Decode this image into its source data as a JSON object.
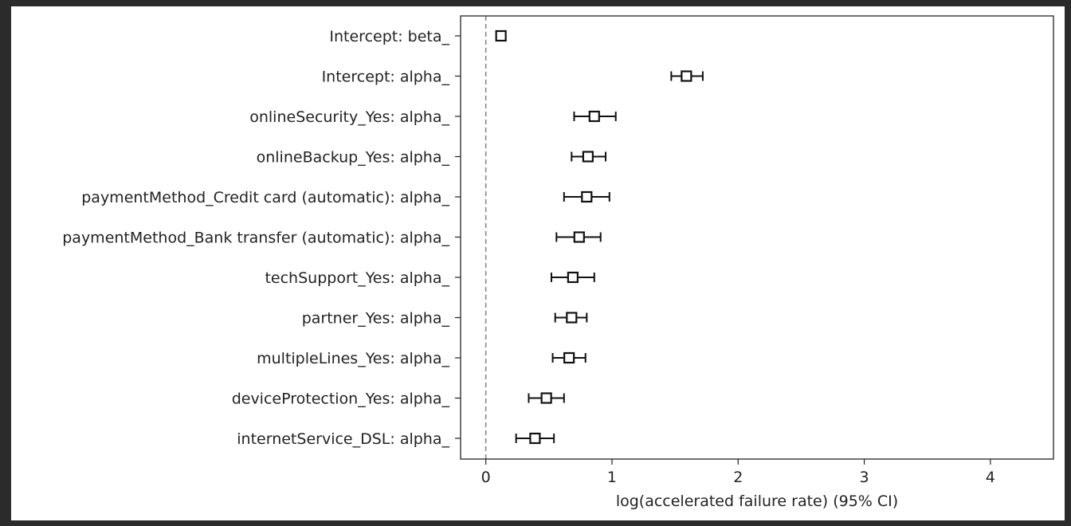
{
  "chart_data": {
    "type": "forest",
    "xlabel": "log(accelerated failure rate) (95% CI)",
    "xlim": [
      -0.2,
      4.5
    ],
    "xticks": [
      0,
      1,
      2,
      3,
      4
    ],
    "reference_line_x": 0,
    "grid": false,
    "rows": [
      {
        "label": "Intercept: beta_",
        "coef": 0.12,
        "lower": 0.12,
        "upper": 0.12
      },
      {
        "label": "Intercept: alpha_",
        "coef": 1.59,
        "lower": 1.47,
        "upper": 1.72
      },
      {
        "label": "onlineSecurity_Yes: alpha_",
        "coef": 0.86,
        "lower": 0.7,
        "upper": 1.03
      },
      {
        "label": "onlineBackup_Yes: alpha_",
        "coef": 0.81,
        "lower": 0.68,
        "upper": 0.95
      },
      {
        "label": "paymentMethod_Credit card (automatic): alpha_",
        "coef": 0.8,
        "lower": 0.62,
        "upper": 0.98
      },
      {
        "label": "paymentMethod_Bank transfer (automatic): alpha_",
        "coef": 0.74,
        "lower": 0.56,
        "upper": 0.91
      },
      {
        "label": "techSupport_Yes: alpha_",
        "coef": 0.69,
        "lower": 0.52,
        "upper": 0.86
      },
      {
        "label": "partner_Yes: alpha_",
        "coef": 0.68,
        "lower": 0.55,
        "upper": 0.8
      },
      {
        "label": "multipleLines_Yes: alpha_",
        "coef": 0.66,
        "lower": 0.53,
        "upper": 0.79
      },
      {
        "label": "deviceProtection_Yes: alpha_",
        "coef": 0.48,
        "lower": 0.34,
        "upper": 0.62
      },
      {
        "label": "internetService_DSL: alpha_",
        "coef": 0.39,
        "lower": 0.24,
        "upper": 0.54
      }
    ]
  }
}
